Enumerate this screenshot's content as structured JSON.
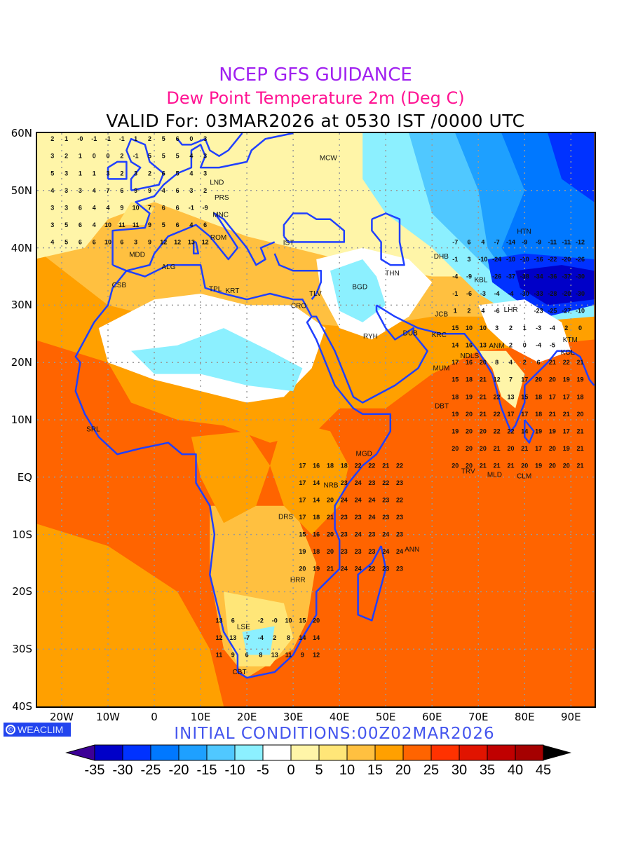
{
  "titles": {
    "line1": "NCEP GFS GUIDANCE",
    "line2": "Dew Point Temperature 2m (Deg C)",
    "line3": "VALID For: 03MAR2026 at 0530 IST /0000 UTC"
  },
  "initial_conditions": "INITIAL CONDITIONS:00Z02MAR2026",
  "logo": {
    "symbol": "©",
    "text": "WEACLIM"
  },
  "axes": {
    "lat_labels": [
      "60N",
      "50N",
      "40N",
      "30N",
      "20N",
      "10N",
      "EQ",
      "10S",
      "20S",
      "30S",
      "40S"
    ],
    "lat_values": [
      60,
      50,
      40,
      30,
      20,
      10,
      0,
      -10,
      -20,
      -30,
      -40
    ],
    "lon_labels": [
      "20W",
      "10W",
      "0",
      "10E",
      "20E",
      "30E",
      "40E",
      "50E",
      "60E",
      "70E",
      "80E",
      "90E"
    ],
    "lon_values": [
      -20,
      -10,
      0,
      10,
      20,
      30,
      40,
      50,
      60,
      70,
      80,
      90
    ],
    "lon_range": [
      -25.3,
      95.1
    ],
    "lat_range": [
      -40,
      60
    ]
  },
  "colorbar": {
    "labels": [
      "-35",
      "-30",
      "-25",
      "-20",
      "-15",
      "-10",
      "-5",
      "0",
      "5",
      "10",
      "15",
      "20",
      "25",
      "30",
      "35",
      "40",
      "45"
    ],
    "colors": [
      "#0000c8",
      "#0032ff",
      "#0078ff",
      "#1ea0ff",
      "#50c8ff",
      "#8cf0ff",
      "#ffffff",
      "#fff5a8",
      "#ffe678",
      "#ffc040",
      "#ffa000",
      "#ff6400",
      "#ff3200",
      "#e11400",
      "#c00000",
      "#a50000"
    ],
    "under_color": "#3c0096",
    "over_color": "#000000"
  },
  "cities": [
    {
      "name": "LND",
      "lon": -0.1,
      "lat": 51.5
    },
    {
      "name": "PRS",
      "lon": 2.3,
      "lat": 48.9
    },
    {
      "name": "MNC",
      "lon": 11.6,
      "lat": 48.1
    },
    {
      "name": "ROM",
      "lon": 12.5,
      "lat": 41.9
    },
    {
      "name": "MDD",
      "lon": -3.7,
      "lat": 40.4
    },
    {
      "name": "ALG",
      "lon": 3.1,
      "lat": 36.8
    },
    {
      "name": "CSB",
      "lon": -7.6,
      "lat": 33.6
    },
    {
      "name": "TPL",
      "lon": 13.2,
      "lat": 32.9
    },
    {
      "name": "KRT",
      "lon": 15.5,
      "lat": 32.6
    },
    {
      "name": "IST",
      "lon": 29,
      "lat": 41
    },
    {
      "name": "MCW",
      "lon": 37.6,
      "lat": 55.8
    },
    {
      "name": "THN",
      "lon": 51.4,
      "lat": 35.7
    },
    {
      "name": "BGD",
      "lon": 44.4,
      "lat": 33.3
    },
    {
      "name": "TLV",
      "lon": 34.8,
      "lat": 32.1
    },
    {
      "name": "CRO",
      "lon": 31.2,
      "lat": 30
    },
    {
      "name": "RYH",
      "lon": 46.7,
      "lat": 24.7
    },
    {
      "name": "DUB",
      "lon": 55.3,
      "lat": 25.2
    },
    {
      "name": "KRC",
      "lon": 67,
      "lat": 24.9
    },
    {
      "name": "JCB",
      "lon": 67.5,
      "lat": 28.5
    },
    {
      "name": "DHB",
      "lon": 68.8,
      "lat": 38.6
    },
    {
      "name": "KBL",
      "lon": 69.2,
      "lat": 34.5
    },
    {
      "name": "HTN",
      "lon": 79.9,
      "lat": 37.1
    },
    {
      "name": "LHR",
      "lon": 74.3,
      "lat": 31.5
    },
    {
      "name": "NDLS",
      "lon": 77.2,
      "lat": 28.6
    },
    {
      "name": "KTM",
      "lon": 85.3,
      "lat": 27.7
    },
    {
      "name": "ANM",
      "lon": 72.6,
      "lat": 23
    },
    {
      "name": "KOL",
      "lon": 88.4,
      "lat": 22.6
    },
    {
      "name": "MUM",
      "lon": 72.9,
      "lat": 19.1
    },
    {
      "name": "DBT",
      "lon": 73,
      "lat": 12.5
    },
    {
      "name": "TRV",
      "lon": 76.9,
      "lat": 8.5
    },
    {
      "name": "CLM",
      "lon": 79.9,
      "lat": 6.9
    },
    {
      "name": "MLD",
      "lon": 73.5,
      "lat": 4.2
    },
    {
      "name": "SRL",
      "lon": -13.2,
      "lat": 8.5
    },
    {
      "name": "MGD",
      "lon": 45.3,
      "lat": 2
    },
    {
      "name": "NRB",
      "lon": 36.8,
      "lat": -1.3
    },
    {
      "name": "DRS",
      "lon": 39.3,
      "lat": -6.8
    },
    {
      "name": "ANN",
      "lon": 47.5,
      "lat": -12.5
    },
    {
      "name": "HRR",
      "lon": 31,
      "lat": -17.8
    },
    {
      "name": "LSE",
      "lon": 22,
      "lat": -26
    },
    {
      "name": "CBT",
      "lon": 18.4,
      "lat": -33.9
    }
  ],
  "grid_values": {
    "lat_step": 3,
    "lon_step": 3,
    "rows": [
      {
        "lat": 59,
        "lon_start": -22,
        "values": [
          "2",
          "1",
          "-0",
          "-1",
          "-1",
          "-1",
          "1",
          "2",
          "5",
          "6",
          "0",
          "3"
        ]
      },
      {
        "lat": 56,
        "lon_start": -22,
        "values": [
          "3",
          "2",
          "1",
          "0",
          "0",
          "2",
          "-1",
          "5",
          "5",
          "5",
          "4",
          "3"
        ]
      },
      {
        "lat": 53,
        "lon_start": -22,
        "values": [
          "5",
          "3",
          "1",
          "1",
          "3",
          "2",
          "3",
          "2",
          "6",
          "5",
          "4",
          "3"
        ]
      },
      {
        "lat": 50,
        "lon_start": -22,
        "values": [
          "4",
          "3",
          "3",
          "4",
          "7",
          "6",
          "9",
          "9",
          "4",
          "6",
          "3",
          "2"
        ]
      },
      {
        "lat": 47,
        "lon_start": -22,
        "values": [
          "3",
          "3",
          "6",
          "4",
          "4",
          "9",
          "10",
          "7",
          "6",
          "6",
          "-1",
          "-9"
        ]
      },
      {
        "lat": 44,
        "lon_start": -22,
        "values": [
          "3",
          "5",
          "6",
          "4",
          "10",
          "11",
          "11",
          "9",
          "5",
          "6",
          "4",
          "6"
        ]
      },
      {
        "lat": 41,
        "lon_start": -22,
        "values": [
          "4",
          "5",
          "6",
          "6",
          "10",
          "6",
          "3",
          "9",
          "12",
          "12",
          "13",
          "12"
        ]
      },
      {
        "lat": 41,
        "lon_start": 65,
        "values": [
          "-7",
          "6",
          "4",
          "-7",
          "-14",
          "-9",
          "-9",
          "-11",
          "-11",
          "-12"
        ]
      },
      {
        "lat": 38,
        "lon_start": 65,
        "values": [
          "-1",
          "3",
          "-10",
          "-24",
          "-10",
          "-10",
          "-16",
          "-22",
          "-20",
          "-26"
        ]
      },
      {
        "lat": 35,
        "lon_start": 65,
        "values": [
          "-4",
          "-9",
          "",
          "-26",
          "-37",
          "-38",
          "-34",
          "-36",
          "-37",
          "-30"
        ]
      },
      {
        "lat": 32,
        "lon_start": 65,
        "values": [
          "-1",
          "-6",
          "-3",
          "-4",
          "-4",
          "-30",
          "-33",
          "-28",
          "-20",
          "-30"
        ]
      },
      {
        "lat": 29,
        "lon_start": 65,
        "values": [
          "1",
          "2",
          "4",
          "-6",
          "",
          "",
          "-23",
          "-25",
          "-27",
          "-10"
        ]
      },
      {
        "lat": 26,
        "lon_start": 65,
        "values": [
          "15",
          "10",
          "10",
          "3",
          "2",
          "1",
          "-3",
          "-4",
          "2",
          "0"
        ]
      },
      {
        "lat": 23,
        "lon_start": 65,
        "values": [
          "14",
          "16",
          "13",
          "",
          "2",
          "0",
          "-4",
          "-5",
          "",
          ""
        ]
      },
      {
        "lat": 20,
        "lon_start": 65,
        "values": [
          "17",
          "16",
          "20",
          "8",
          "4",
          "2",
          "6",
          "21",
          "22",
          "21"
        ]
      },
      {
        "lat": 17,
        "lon_start": 65,
        "values": [
          "15",
          "18",
          "21",
          "12",
          "7",
          "17",
          "20",
          "20",
          "19",
          "19"
        ]
      },
      {
        "lat": 14,
        "lon_start": 65,
        "values": [
          "18",
          "19",
          "21",
          "22",
          "13",
          "15",
          "18",
          "17",
          "17",
          "18"
        ]
      },
      {
        "lat": 11,
        "lon_start": 65,
        "values": [
          "19",
          "20",
          "21",
          "22",
          "17",
          "17",
          "18",
          "21",
          "21",
          "20"
        ]
      },
      {
        "lat": 8,
        "lon_start": 65,
        "values": [
          "19",
          "20",
          "20",
          "22",
          "22",
          "14",
          "19",
          "19",
          "17",
          "21"
        ]
      },
      {
        "lat": 5,
        "lon_start": 65,
        "values": [
          "20",
          "20",
          "20",
          "21",
          "20",
          "21",
          "17",
          "20",
          "19",
          "21"
        ]
      },
      {
        "lat": 2,
        "lon_start": 65,
        "values": [
          "20",
          "20",
          "21",
          "21",
          "21",
          "20",
          "19",
          "20",
          "20",
          "21"
        ]
      },
      {
        "lat": 2,
        "lon_start": 32,
        "values": [
          "17",
          "16",
          "18",
          "18",
          "22",
          "22",
          "21",
          "22"
        ]
      },
      {
        "lat": -1,
        "lon_start": 32,
        "values": [
          "17",
          "14",
          "",
          "23",
          "24",
          "23",
          "22",
          "23"
        ]
      },
      {
        "lat": -4,
        "lon_start": 32,
        "values": [
          "17",
          "14",
          "20",
          "24",
          "24",
          "24",
          "23",
          "22"
        ]
      },
      {
        "lat": -7,
        "lon_start": 32,
        "values": [
          "17",
          "18",
          "21",
          "23",
          "23",
          "24",
          "23",
          "23"
        ]
      },
      {
        "lat": -10,
        "lon_start": 32,
        "values": [
          "15",
          "16",
          "20",
          "23",
          "24",
          "23",
          "24",
          "23"
        ]
      },
      {
        "lat": -13,
        "lon_start": 32,
        "values": [
          "19",
          "18",
          "20",
          "23",
          "23",
          "23",
          "24",
          "24"
        ]
      },
      {
        "lat": -16,
        "lon_start": 32,
        "values": [
          "20",
          "19",
          "21",
          "24",
          "24",
          "22",
          "23",
          "23"
        ]
      },
      {
        "lat": -25,
        "lon_start": 14,
        "values": [
          "13",
          "6",
          "",
          "-2",
          "-0",
          "10",
          "15",
          "20"
        ]
      },
      {
        "lat": -28,
        "lon_start": 14,
        "values": [
          "12",
          "13",
          "-7",
          "-4",
          "2",
          "8",
          "14",
          "14"
        ]
      },
      {
        "lat": -31,
        "lon_start": 14,
        "values": [
          "11",
          "9",
          "6",
          "8",
          "13",
          "11",
          "9",
          "12"
        ]
      }
    ]
  }
}
